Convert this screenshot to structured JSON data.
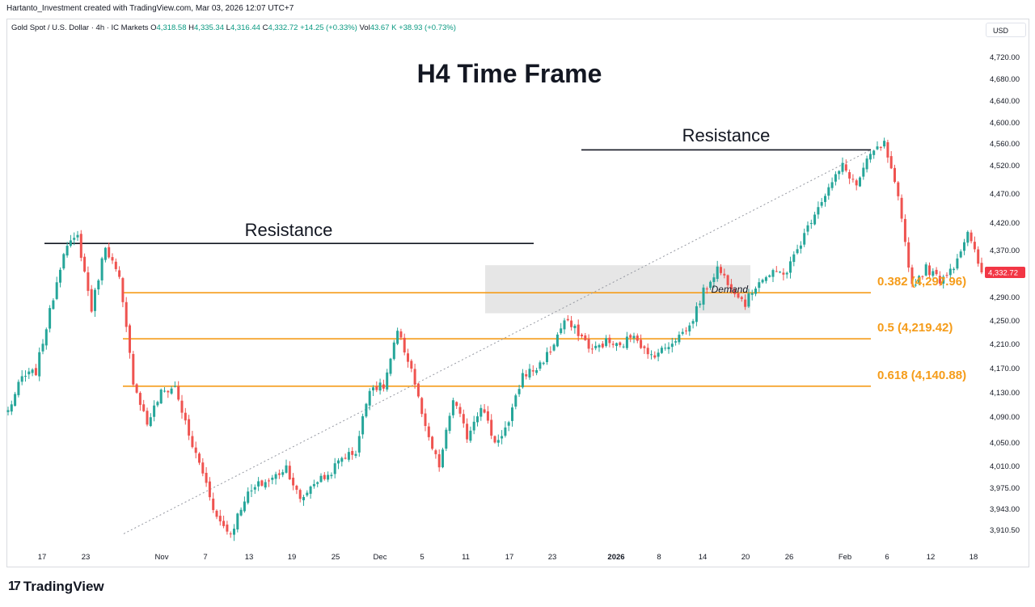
{
  "header": {
    "attribution": "Hartanto_Investment created with TradingView.com, Mar 03, 2026 12:07 UTC+7"
  },
  "symbol_bar": {
    "symbol": "Gold Spot / U.S. Dollar · 4h · IC Markets",
    "open_label": "O",
    "open": "4,318.58",
    "high_label": "H",
    "high": "4,335.34",
    "low_label": "L",
    "low": "4,316.44",
    "close_label": "C",
    "close": "4,332.72",
    "change": "+14.25 (+0.33%)",
    "vol_label": "Vol",
    "vol": "43.67 K",
    "vol_change": "+38.93 (+0.73%)"
  },
  "currency_button": "USD",
  "branding": {
    "logo_mark": "17",
    "name": "TradingView"
  },
  "colors": {
    "up": "#26a69a",
    "down": "#ef5350",
    "fib": "#f59c1a",
    "demand_zone": "#e6e6e6",
    "trendline": "#9598a1",
    "price_tag": "#f23645"
  },
  "chart_data": {
    "type": "candlestick",
    "title": "H4 Time Frame",
    "ylim": [
      3900,
      4745
    ],
    "y_ticks": [
      3910.5,
      3943.0,
      3975.0,
      4010.0,
      4050.0,
      4090.0,
      4130.0,
      4170.0,
      4210.0,
      4250.0,
      4290.0,
      4330.0,
      4370.0,
      4420.0,
      4470.0,
      4520.0,
      4560.0,
      4600.0,
      4640.0,
      4680.0,
      4720.0
    ],
    "y_tick_labels": [
      "3,910.50",
      "3,943.00",
      "3,975.00",
      "4,010.00",
      "4,050.00",
      "4,090.00",
      "4,130.00",
      "4,170.00",
      "4,210.00",
      "4,250.00",
      "4,290.00",
      "",
      "4,370.00",
      "4,420.00",
      "4,470.00",
      "4,520.00",
      "4,560.00",
      "4,600.00",
      "4,640.00",
      "4,680.00",
      "4,720.00"
    ],
    "x_tick_labels": [
      "17",
      "23",
      "Nov",
      "7",
      "13",
      "19",
      "25",
      "Dec",
      "5",
      "11",
      "17",
      "23",
      "2026",
      "8",
      "14",
      "20",
      "26",
      "Feb",
      "6",
      "12",
      "18"
    ],
    "last_price": 4332.72,
    "last_price_label": "4,332.72",
    "path": [
      [
        0,
        4100
      ],
      [
        2,
        4155
      ],
      [
        4,
        4165
      ],
      [
        6,
        4265
      ],
      [
        8,
        4370
      ],
      [
        10,
        4395
      ],
      [
        12,
        4270
      ],
      [
        14,
        4380
      ],
      [
        16,
        4320
      ],
      [
        18,
        4150
      ],
      [
        20,
        4080
      ],
      [
        22,
        4130
      ],
      [
        24,
        4140
      ],
      [
        26,
        4060
      ],
      [
        28,
        4000
      ],
      [
        30,
        3930
      ],
      [
        32,
        3905
      ],
      [
        34,
        3960
      ],
      [
        36,
        3980
      ],
      [
        38,
        3990
      ],
      [
        40,
        4010
      ],
      [
        42,
        3955
      ],
      [
        44,
        3985
      ],
      [
        46,
        3995
      ],
      [
        48,
        4025
      ],
      [
        50,
        4035
      ],
      [
        52,
        4140
      ],
      [
        54,
        4140
      ],
      [
        56,
        4230
      ],
      [
        58,
        4170
      ],
      [
        60,
        4070
      ],
      [
        62,
        4010
      ],
      [
        64,
        4120
      ],
      [
        66,
        4060
      ],
      [
        68,
        4110
      ],
      [
        70,
        4050
      ],
      [
        72,
        4080
      ],
      [
        74,
        4160
      ],
      [
        76,
        4170
      ],
      [
        78,
        4200
      ],
      [
        80,
        4250
      ],
      [
        82,
        4230
      ],
      [
        84,
        4200
      ],
      [
        86,
        4215
      ],
      [
        88,
        4205
      ],
      [
        90,
        4230
      ],
      [
        92,
        4190
      ],
      [
        94,
        4200
      ],
      [
        96,
        4220
      ],
      [
        98,
        4240
      ],
      [
        100,
        4300
      ],
      [
        102,
        4340
      ],
      [
        104,
        4310
      ],
      [
        106,
        4280
      ],
      [
        108,
        4320
      ],
      [
        110,
        4330
      ],
      [
        112,
        4335
      ],
      [
        114,
        4385
      ],
      [
        116,
        4440
      ],
      [
        118,
        4480
      ],
      [
        120,
        4520
      ],
      [
        122,
        4485
      ],
      [
        124,
        4540
      ],
      [
        126,
        4560
      ],
      [
        128,
        4460
      ],
      [
        130,
        4310
      ],
      [
        132,
        4340
      ],
      [
        134,
        4320
      ],
      [
        136,
        4345
      ],
      [
        138,
        4400
      ],
      [
        140,
        4332.72
      ]
    ],
    "annotations": {
      "resistance_1": {
        "label": "Resistance",
        "price": 4383
      },
      "resistance_2": {
        "label": "Resistance",
        "price": 4549
      },
      "demand_zone": {
        "label": "Demand",
        "top": 4345,
        "bottom": 4263
      },
      "fib_levels": [
        {
          "ratio": "0.382",
          "price": 4297.96,
          "label": "0.382 (4,297.96)"
        },
        {
          "ratio": "0.5",
          "price": 4219.42,
          "label": "0.5 (4,219.42)"
        },
        {
          "ratio": "0.618",
          "price": 4140.88,
          "label": "0.618 (4,140.88)"
        }
      ],
      "trendline": {
        "from_price": 3905,
        "to_price": 4549
      }
    }
  }
}
